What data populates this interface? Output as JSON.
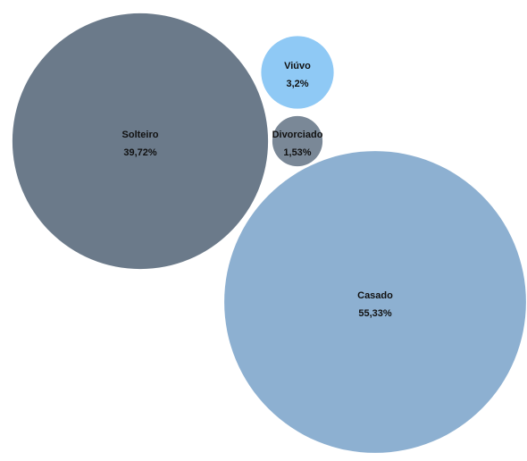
{
  "chart_data": {
    "type": "bubble",
    "title": "",
    "items": [
      {
        "label": "Solteiro",
        "value": 39.72,
        "value_label": "39,72%",
        "color": "#6b7a8a"
      },
      {
        "label": "Viúvo",
        "value": 3.2,
        "value_label": "3,2%",
        "color": "#8fc9f5"
      },
      {
        "label": "Divorciado",
        "value": 1.53,
        "value_label": "1,53%",
        "color": "#7a8897"
      },
      {
        "label": "Casado",
        "value": 55.33,
        "value_label": "55,33%",
        "color": "#8db0d1"
      }
    ]
  }
}
